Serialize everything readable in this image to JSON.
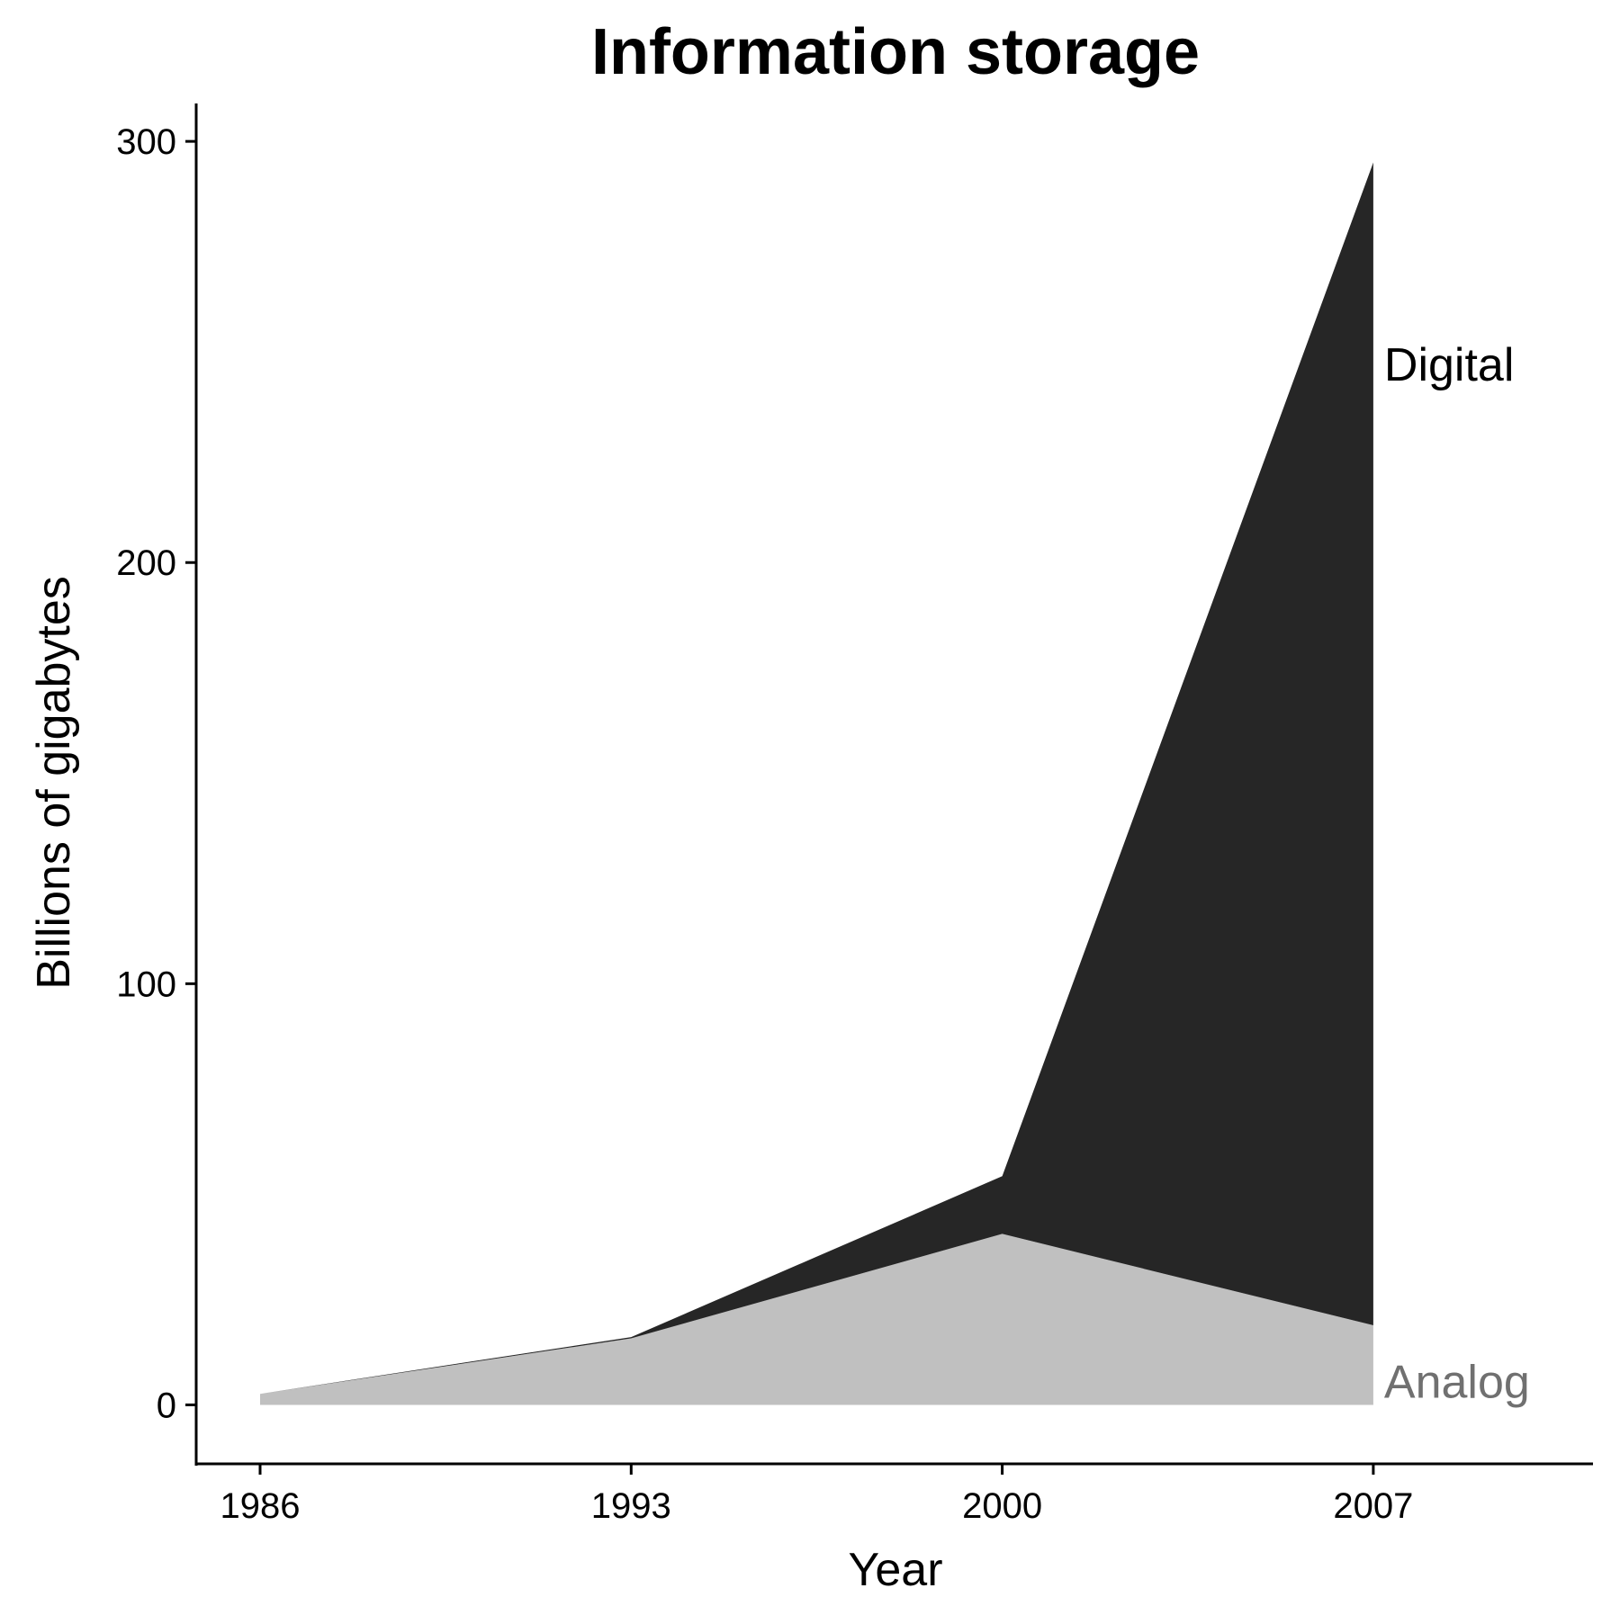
{
  "chart_data": {
    "type": "area",
    "stacked": true,
    "title": "Information storage",
    "xlabel": "Year",
    "ylabel": "Billions of gigabytes",
    "x": [
      1986,
      1993,
      2000,
      2007
    ],
    "xticks": [
      "1986",
      "1993",
      "2000",
      "2007"
    ],
    "yticks": [
      "0",
      "100",
      "200",
      "300"
    ],
    "ylim": [
      -14,
      309
    ],
    "series": [
      {
        "name": "Analog",
        "values": [
          2.6,
          15.8,
          40.6,
          18.9
        ],
        "color": "#c0c0c0",
        "label_color": "#707070"
      },
      {
        "name": "Digital",
        "values": [
          0.02,
          0.3,
          13.7,
          276.1
        ],
        "color": "#262626",
        "label_color": "#000000"
      }
    ],
    "grid": false,
    "legend": "direct-labels-right"
  }
}
